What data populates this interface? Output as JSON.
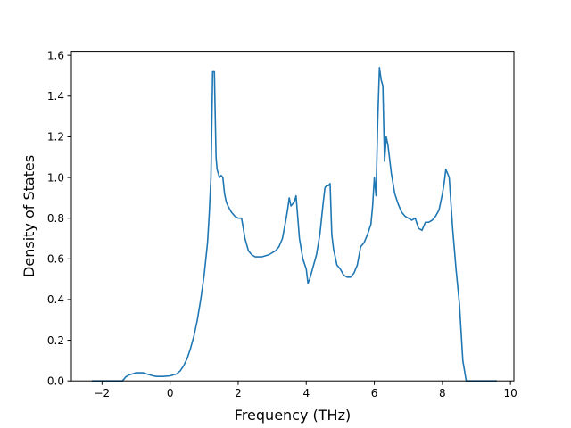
{
  "chart_data": {
    "type": "line",
    "title": "",
    "xlabel": "Frequency (THz)",
    "ylabel": "Density of States",
    "xlim": [
      -2.9,
      10.1
    ],
    "ylim": [
      0.0,
      1.62
    ],
    "grid": false,
    "legend": "none",
    "xticks": [
      -2,
      0,
      2,
      4,
      6,
      8,
      10
    ],
    "xtick_labels": [
      "−2",
      "0",
      "2",
      "4",
      "6",
      "8",
      "10"
    ],
    "yticks": [
      0.0,
      0.2,
      0.4,
      0.6,
      0.8,
      1.0,
      1.2,
      1.4,
      1.6
    ],
    "ytick_labels": [
      "0.0",
      "0.2",
      "0.4",
      "0.6",
      "0.8",
      "1.0",
      "1.2",
      "1.4",
      "1.6"
    ],
    "line_color": "#1f77b4",
    "series": [
      {
        "x": [
          -2.3,
          -1.4,
          -1.3,
          -1.2,
          -1.1,
          -1.0,
          -0.9,
          -0.8,
          -0.7,
          -0.6,
          -0.5,
          -0.4,
          -0.3,
          -0.2,
          0.0,
          0.2,
          0.3,
          0.4,
          0.5,
          0.6,
          0.7,
          0.8,
          0.9,
          1.0,
          1.1,
          1.15,
          1.2,
          1.25,
          1.28,
          1.3,
          1.35,
          1.38,
          1.45,
          1.5,
          1.55,
          1.6,
          1.65,
          1.7,
          1.8,
          1.9,
          2.0,
          2.1,
          2.15,
          2.2,
          2.3,
          2.4,
          2.5,
          2.7,
          2.9,
          3.1,
          3.2,
          3.3,
          3.4,
          3.45,
          3.5,
          3.55,
          3.6,
          3.65,
          3.7,
          3.8,
          3.9,
          4.0,
          4.05,
          4.1,
          4.2,
          4.3,
          4.4,
          4.5,
          4.55,
          4.6,
          4.65,
          4.7,
          4.75,
          4.8,
          4.9,
          5.0,
          5.1,
          5.2,
          5.3,
          5.4,
          5.5,
          5.6,
          5.7,
          5.8,
          5.9,
          5.95,
          6.0,
          6.05,
          6.1,
          6.15,
          6.2,
          6.25,
          6.3,
          6.35,
          6.4,
          6.5,
          6.6,
          6.7,
          6.8,
          6.9,
          7.0,
          7.1,
          7.2,
          7.3,
          7.4,
          7.5,
          7.6,
          7.7,
          7.8,
          7.9,
          8.0,
          8.05,
          8.1,
          8.15,
          8.2,
          8.3,
          8.4,
          8.5,
          8.6,
          8.7,
          9.6
        ],
        "values": [
          0.0,
          0.0,
          0.02,
          0.03,
          0.035,
          0.04,
          0.04,
          0.04,
          0.035,
          0.03,
          0.025,
          0.022,
          0.022,
          0.022,
          0.025,
          0.035,
          0.05,
          0.075,
          0.11,
          0.16,
          0.22,
          0.3,
          0.4,
          0.52,
          0.68,
          0.82,
          1.0,
          1.52,
          1.52,
          1.52,
          1.1,
          1.04,
          1.0,
          1.01,
          1.0,
          0.92,
          0.88,
          0.86,
          0.83,
          0.81,
          0.8,
          0.8,
          0.75,
          0.7,
          0.64,
          0.62,
          0.61,
          0.61,
          0.62,
          0.64,
          0.66,
          0.7,
          0.79,
          0.84,
          0.9,
          0.86,
          0.87,
          0.88,
          0.91,
          0.7,
          0.6,
          0.55,
          0.48,
          0.5,
          0.56,
          0.62,
          0.72,
          0.88,
          0.95,
          0.96,
          0.96,
          0.97,
          0.72,
          0.65,
          0.57,
          0.55,
          0.52,
          0.51,
          0.51,
          0.53,
          0.57,
          0.66,
          0.68,
          0.72,
          0.77,
          0.86,
          1.0,
          0.91,
          1.28,
          1.54,
          1.48,
          1.45,
          1.08,
          1.2,
          1.16,
          1.02,
          0.92,
          0.87,
          0.83,
          0.81,
          0.8,
          0.79,
          0.8,
          0.75,
          0.74,
          0.78,
          0.78,
          0.79,
          0.81,
          0.84,
          0.92,
          0.97,
          1.04,
          1.02,
          1.0,
          0.75,
          0.55,
          0.38,
          0.1,
          0.0,
          0.0
        ]
      }
    ]
  }
}
